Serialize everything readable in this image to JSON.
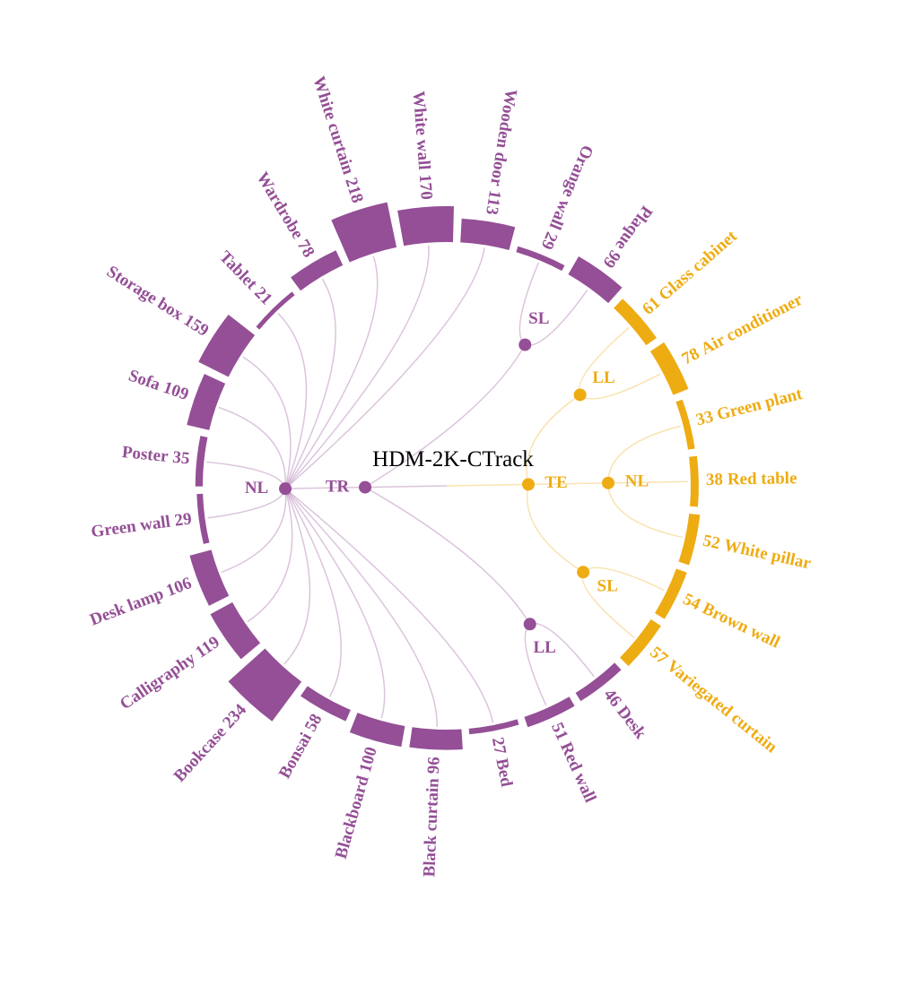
{
  "chart_data": {
    "type": "radial-bar",
    "title": "HDM-2K-CTrack",
    "groups": [
      {
        "name": "TE",
        "color": "#eeac13",
        "subgroups": [
          {
            "name": "LL",
            "categories": [
              "Glass cabinet",
              "Air conditioner"
            ],
            "values": [
              61,
              78
            ]
          },
          {
            "name": "NL",
            "categories": [
              "Green plant",
              "Red table",
              "White pillar"
            ],
            "values": [
              33,
              38,
              52
            ]
          },
          {
            "name": "SL",
            "categories": [
              "Brown wall",
              "Variegated curtain"
            ],
            "values": [
              54,
              57
            ]
          }
        ]
      },
      {
        "name": "TR",
        "color": "#944f96",
        "subgroups": [
          {
            "name": "LL",
            "categories": [
              "Desk",
              "Red wall"
            ],
            "values": [
              46,
              51
            ]
          },
          {
            "name": "NL",
            "categories": [
              "Bed",
              "Black curtain",
              "Blackboard",
              "Bonsai",
              "Bookcase",
              "Calligraphy",
              "Desk lamp",
              "Green wall",
              "Poster",
              "Sofa",
              "Storage box",
              "Tablet",
              "Wardrobe",
              "White curtain",
              "White wall",
              "Wooden door"
            ],
            "values": [
              27,
              96,
              100,
              58,
              234,
              119,
              106,
              29,
              35,
              109,
              159,
              21,
              78,
              218,
              170,
              113
            ]
          },
          {
            "name": "SL",
            "categories": [
              "Orange wall",
              "Plaque"
            ],
            "values": [
              29,
              99
            ]
          }
        ]
      }
    ]
  }
}
